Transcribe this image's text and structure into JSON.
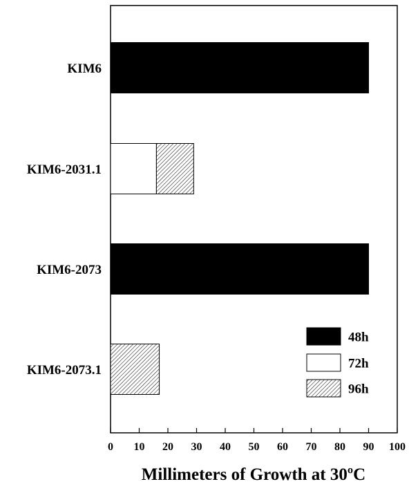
{
  "chart_data": {
    "type": "bar",
    "orientation": "horizontal",
    "stacked": true,
    "categories": [
      "KIM6",
      "KIM6-2031.1",
      "KIM6-2073",
      "KIM6-2073.1"
    ],
    "series": [
      {
        "name": "48h",
        "values": [
          90,
          0,
          90,
          0
        ],
        "color": "#000000",
        "pattern": "solid"
      },
      {
        "name": "72h",
        "values": [
          0,
          16,
          0,
          0
        ],
        "color": "#ffffff",
        "pattern": "open"
      },
      {
        "name": "96h",
        "values": [
          0,
          13,
          0,
          17
        ],
        "color": "#ffffff",
        "pattern": "hatched"
      }
    ],
    "xticks": [
      "0",
      "10",
      "20",
      "30",
      "40",
      "50",
      "60",
      "70",
      "80",
      "90",
      "100"
    ],
    "xlabel": "Millimeters of Growth at 30ºC",
    "xlim": [
      0,
      100
    ],
    "grid": false,
    "legend_position": "bottom-right"
  }
}
